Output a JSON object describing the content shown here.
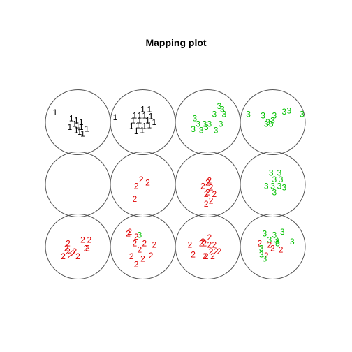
{
  "chart_data": {
    "type": "scatter",
    "title": "Mapping plot",
    "grid": {
      "cols": 4,
      "rows": 3
    },
    "class_colors": {
      "1": "#000000",
      "2": "#DF0000",
      "3": "#00C000"
    },
    "nodes": [
      {
        "id": "row1-col1",
        "points": [
          {
            "label": "1",
            "x": -0.7,
            "y": 0.3
          },
          {
            "label": "1",
            "x": -0.2,
            "y": 0.12
          },
          {
            "label": "1",
            "x": -0.05,
            "y": 0.05
          },
          {
            "label": "1",
            "x": -0.1,
            "y": -0.05
          },
          {
            "label": "1",
            "x": 0.0,
            "y": -0.1
          },
          {
            "label": "1",
            "x": -0.05,
            "y": -0.25
          },
          {
            "label": "1",
            "x": 0.1,
            "y": -0.15
          },
          {
            "label": "1",
            "x": 0.28,
            "y": -0.2
          },
          {
            "label": "1",
            "x": 0.05,
            "y": -0.3
          },
          {
            "label": "1",
            "x": 0.1,
            "y": 0.0
          },
          {
            "label": "1",
            "x": -0.25,
            "y": -0.15
          },
          {
            "label": "1",
            "x": 0.15,
            "y": -0.35
          }
        ]
      },
      {
        "id": "row1-col2",
        "points": [
          {
            "label": "1",
            "x": -0.85,
            "y": 0.15
          },
          {
            "label": "1",
            "x": 0.0,
            "y": 0.4
          },
          {
            "label": "1",
            "x": 0.2,
            "y": 0.4
          },
          {
            "label": "1",
            "x": -0.25,
            "y": 0.2
          },
          {
            "label": "1",
            "x": -0.1,
            "y": 0.2
          },
          {
            "label": "1",
            "x": 0.05,
            "y": 0.2
          },
          {
            "label": "1",
            "x": 0.25,
            "y": 0.18
          },
          {
            "label": "1",
            "x": -0.3,
            "y": 0.05
          },
          {
            "label": "1",
            "x": -0.1,
            "y": 0.05
          },
          {
            "label": "1",
            "x": 0.15,
            "y": 0.05
          },
          {
            "label": "1",
            "x": 0.35,
            "y": 0.0
          },
          {
            "label": "1",
            "x": -0.35,
            "y": -0.12
          },
          {
            "label": "1",
            "x": -0.15,
            "y": -0.1
          },
          {
            "label": "1",
            "x": 0.05,
            "y": -0.12
          },
          {
            "label": "1",
            "x": 0.2,
            "y": -0.1
          },
          {
            "label": "1",
            "x": -0.2,
            "y": -0.28
          },
          {
            "label": "1",
            "x": -0.02,
            "y": -0.25
          }
        ]
      },
      {
        "id": "row1-col3",
        "points": [
          {
            "label": "3",
            "x": 0.35,
            "y": 0.5
          },
          {
            "label": "3",
            "x": 0.45,
            "y": 0.4
          },
          {
            "label": "3",
            "x": 0.5,
            "y": 0.25
          },
          {
            "label": "3",
            "x": 0.2,
            "y": 0.25
          },
          {
            "label": "3",
            "x": -0.4,
            "y": 0.12
          },
          {
            "label": "3",
            "x": -0.3,
            "y": -0.05
          },
          {
            "label": "3",
            "x": -0.1,
            "y": -0.05
          },
          {
            "label": "3",
            "x": 0.05,
            "y": -0.05
          },
          {
            "label": "3",
            "x": -0.05,
            "y": -0.15
          },
          {
            "label": "3",
            "x": -0.45,
            "y": -0.22
          },
          {
            "label": "3",
            "x": -0.2,
            "y": -0.25
          },
          {
            "label": "3",
            "x": 0.25,
            "y": -0.25
          },
          {
            "label": "3",
            "x": 0.4,
            "y": -0.05
          }
        ]
      },
      {
        "id": "row1-col4",
        "points": [
          {
            "label": "3",
            "x": -0.75,
            "y": 0.25
          },
          {
            "label": "3",
            "x": -0.3,
            "y": 0.2
          },
          {
            "label": "3",
            "x": 0.35,
            "y": 0.32
          },
          {
            "label": "3",
            "x": 0.5,
            "y": 0.35
          },
          {
            "label": "3",
            "x": 0.9,
            "y": 0.25
          },
          {
            "label": "3",
            "x": 0.05,
            "y": 0.2
          },
          {
            "label": "3",
            "x": 0.0,
            "y": 0.05
          },
          {
            "label": "3",
            "x": -0.15,
            "y": 0.0
          },
          {
            "label": "3",
            "x": -0.05,
            "y": -0.05
          },
          {
            "label": "3",
            "x": -0.2,
            "y": -0.05
          }
        ]
      },
      {
        "id": "row2-col1",
        "points": []
      },
      {
        "id": "row2-col2",
        "points": [
          {
            "label": "2",
            "x": -0.05,
            "y": 0.15
          },
          {
            "label": "2",
            "x": 0.15,
            "y": 0.05
          },
          {
            "label": "2",
            "x": -0.2,
            "y": -0.05
          },
          {
            "label": "2",
            "x": -0.25,
            "y": -0.45
          }
        ]
      },
      {
        "id": "row2-col3",
        "points": [
          {
            "label": "2",
            "x": 0.05,
            "y": 0.12
          },
          {
            "label": "2",
            "x": 0.0,
            "y": 0.05
          },
          {
            "label": "2",
            "x": -0.15,
            "y": -0.05
          },
          {
            "label": "2",
            "x": 0.1,
            "y": -0.1
          },
          {
            "label": "2",
            "x": 0.0,
            "y": -0.25
          },
          {
            "label": "2",
            "x": -0.05,
            "y": -0.3
          },
          {
            "label": "2",
            "x": 0.2,
            "y": -0.3
          },
          {
            "label": "2",
            "x": 0.1,
            "y": -0.5
          },
          {
            "label": "2",
            "x": -0.05,
            "y": -0.6
          }
        ]
      },
      {
        "id": "row2-col4",
        "points": [
          {
            "label": "3",
            "x": -0.05,
            "y": 0.35
          },
          {
            "label": "3",
            "x": 0.2,
            "y": 0.35
          },
          {
            "label": "3",
            "x": 0.05,
            "y": 0.15
          },
          {
            "label": "3",
            "x": 0.25,
            "y": 0.15
          },
          {
            "label": "3",
            "x": -0.2,
            "y": -0.05
          },
          {
            "label": "3",
            "x": 0.0,
            "y": -0.05
          },
          {
            "label": "3",
            "x": 0.2,
            "y": -0.05
          },
          {
            "label": "3",
            "x": 0.35,
            "y": -0.1
          },
          {
            "label": "3",
            "x": 0.05,
            "y": -0.25
          }
        ]
      },
      {
        "id": "row3-col1",
        "points": [
          {
            "label": "2",
            "x": 0.15,
            "y": 0.2
          },
          {
            "label": "2",
            "x": 0.35,
            "y": 0.2
          },
          {
            "label": "2",
            "x": -0.3,
            "y": 0.1
          },
          {
            "label": "2",
            "x": -0.35,
            "y": -0.05
          },
          {
            "label": "2",
            "x": -0.3,
            "y": -0.15
          },
          {
            "label": "2",
            "x": -0.1,
            "y": -0.15
          },
          {
            "label": "2",
            "x": 0.25,
            "y": -0.05
          },
          {
            "label": "2",
            "x": 0.3,
            "y": -0.05
          },
          {
            "label": "2",
            "x": -0.45,
            "y": -0.3
          },
          {
            "label": "2",
            "x": -0.25,
            "y": -0.28
          },
          {
            "label": "2",
            "x": 0.0,
            "y": -0.3
          },
          {
            "label": "2",
            "x": -0.15,
            "y": -0.22
          }
        ]
      },
      {
        "id": "row3-col2",
        "points": [
          {
            "label": "2",
            "x": -0.45,
            "y": 0.4
          },
          {
            "label": "2",
            "x": -0.4,
            "y": 0.45
          },
          {
            "label": "3",
            "x": -0.1,
            "y": 0.35
          },
          {
            "label": "2",
            "x": -0.2,
            "y": 0.3
          },
          {
            "label": "2",
            "x": 0.05,
            "y": 0.1
          },
          {
            "label": "2",
            "x": -0.25,
            "y": 0.1
          },
          {
            "label": "2",
            "x": 0.35,
            "y": 0.05
          },
          {
            "label": "2",
            "x": -0.1,
            "y": -0.1
          },
          {
            "label": "2",
            "x": -0.35,
            "y": -0.3
          },
          {
            "label": "2",
            "x": 0.25,
            "y": -0.28
          },
          {
            "label": "2",
            "x": 0.0,
            "y": -0.38
          },
          {
            "label": "2",
            "x": -0.2,
            "y": -0.55
          }
        ]
      },
      {
        "id": "row3-col3",
        "points": [
          {
            "label": "2",
            "x": 0.05,
            "y": 0.28
          },
          {
            "label": "2",
            "x": -0.55,
            "y": 0.05
          },
          {
            "label": "2",
            "x": -0.2,
            "y": 0.1
          },
          {
            "label": "2",
            "x": -0.15,
            "y": 0.15
          },
          {
            "label": "2",
            "x": -0.1,
            "y": 0.1
          },
          {
            "label": "2",
            "x": 0.05,
            "y": 0.05
          },
          {
            "label": "2",
            "x": 0.2,
            "y": 0.05
          },
          {
            "label": "2",
            "x": -0.45,
            "y": -0.25
          },
          {
            "label": "2",
            "x": -0.1,
            "y": -0.3
          },
          {
            "label": "2",
            "x": 0.1,
            "y": -0.15
          },
          {
            "label": "2",
            "x": 0.25,
            "y": -0.15
          },
          {
            "label": "2",
            "x": 0.35,
            "y": -0.15
          },
          {
            "label": "2",
            "x": 0.15,
            "y": -0.3
          },
          {
            "label": "2",
            "x": -0.05,
            "y": -0.3
          }
        ]
      },
      {
        "id": "row3-col4",
        "points": [
          {
            "label": "3",
            "x": -0.25,
            "y": 0.4
          },
          {
            "label": "3",
            "x": 0.05,
            "y": 0.35
          },
          {
            "label": "3",
            "x": 0.3,
            "y": 0.45
          },
          {
            "label": "3",
            "x": -0.1,
            "y": 0.2
          },
          {
            "label": "3",
            "x": 0.1,
            "y": 0.2
          },
          {
            "label": "3",
            "x": 0.15,
            "y": 0.15
          },
          {
            "label": "3",
            "x": 0.15,
            "y": 0.1
          },
          {
            "label": "2",
            "x": -0.4,
            "y": 0.1
          },
          {
            "label": "2",
            "x": -0.1,
            "y": 0.05
          },
          {
            "label": "3",
            "x": 0.6,
            "y": 0.15
          },
          {
            "label": "3",
            "x": -0.35,
            "y": -0.05
          },
          {
            "label": "2",
            "x": 0.0,
            "y": -0.05
          },
          {
            "label": "2",
            "x": 0.25,
            "y": -0.1
          },
          {
            "label": "3",
            "x": -0.35,
            "y": -0.25
          },
          {
            "label": "2",
            "x": -0.2,
            "y": -0.28
          },
          {
            "label": "3",
            "x": -0.25,
            "y": -0.38
          }
        ]
      }
    ]
  }
}
